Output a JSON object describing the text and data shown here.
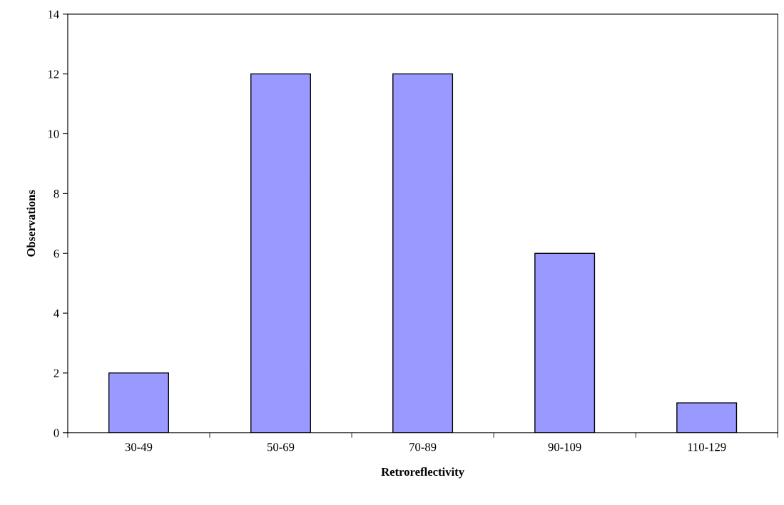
{
  "chart_data": {
    "type": "bar",
    "xlabel": "Retroreflectivity",
    "ylabel": "Observations",
    "categories": [
      "30-49",
      "50-69",
      "70-89",
      "90-109",
      "110-129"
    ],
    "values": [
      2,
      12,
      12,
      6,
      1
    ],
    "color": "#9999ff",
    "ylim": [
      0,
      14
    ],
    "yticks": [
      0,
      2,
      4,
      6,
      8,
      10,
      12,
      14
    ],
    "grid": false,
    "legend": false
  }
}
